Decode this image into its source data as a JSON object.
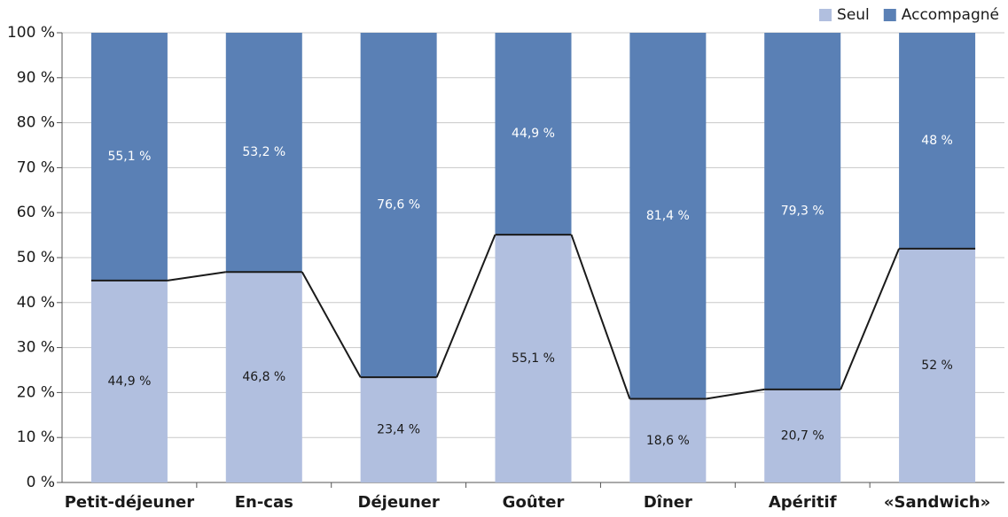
{
  "chart_data": {
    "type": "stacked_bar",
    "categories": [
      "Petit-déjeuner",
      "En-cas",
      "Déjeuner",
      "Goûter",
      "Dîner",
      "Apéritif",
      "«Sandwich»"
    ],
    "series": [
      {
        "name": "Seul",
        "color": "#b1bfdf",
        "label_color": "#1a1a1a",
        "values": [
          44.9,
          46.8,
          23.4,
          55.1,
          18.6,
          20.7,
          52
        ],
        "value_labels": [
          "44,9 %",
          "46,8 %",
          "23,4 %",
          "55,1 %",
          "18,6 %",
          "20,7 %",
          "52 %"
        ]
      },
      {
        "name": "Accompagné",
        "color": "#5a80b5",
        "label_color": "#ffffff",
        "values": [
          55.1,
          53.2,
          76.6,
          44.9,
          81.4,
          79.3,
          48
        ],
        "value_labels": [
          "55,1 %",
          "53,2 %",
          "76,6 %",
          "44,9 %",
          "81,4 %",
          "79,3 %",
          "48 %"
        ]
      }
    ],
    "ylim": [
      0,
      100
    ],
    "yticks": [
      {
        "value": 0,
        "label": "0 %"
      },
      {
        "value": 10,
        "label": "10 %"
      },
      {
        "value": 20,
        "label": "20 %"
      },
      {
        "value": 30,
        "label": "30 %"
      },
      {
        "value": 40,
        "label": "40 %"
      },
      {
        "value": 50,
        "label": "50 %"
      },
      {
        "value": 60,
        "label": "60 %"
      },
      {
        "value": 70,
        "label": "70 %"
      },
      {
        "value": 80,
        "label": "80 %"
      },
      {
        "value": 90,
        "label": "90 %"
      },
      {
        "value": 100,
        "label": "100 %"
      }
    ],
    "grid": true,
    "legend": "top-right",
    "connector_line": true,
    "connector_color": "#1a1a1a"
  }
}
